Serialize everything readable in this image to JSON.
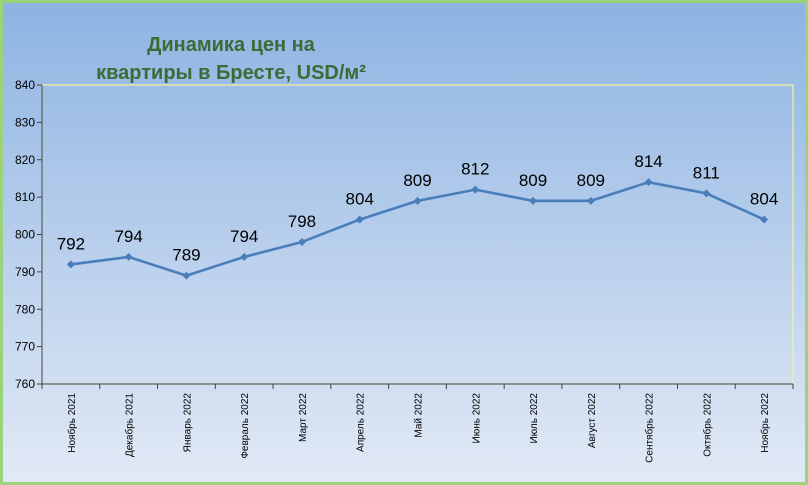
{
  "chart_data": {
    "type": "line",
    "title_lines": [
      "Динамика цен на",
      "квартиры в Бресте, USD/м²"
    ],
    "categories": [
      "Ноябрь 2021",
      "Декабрь 2021",
      "Январь 2022",
      "Февраль 2022",
      "Март 2022",
      "Апрель 2022",
      "Май 2022",
      "Июнь 2022",
      "Июль 2022",
      "Август 2022",
      "Сентябрь 2022",
      "Октябрь 2022",
      "Ноябрь 2022"
    ],
    "values": [
      792,
      794,
      789,
      794,
      798,
      804,
      809,
      812,
      809,
      809,
      814,
      811,
      804
    ],
    "ylim": [
      760,
      840
    ],
    "yticks": [
      760,
      770,
      780,
      790,
      800,
      810,
      820,
      830,
      840
    ],
    "data_labels": true,
    "grid": false,
    "legend": "none"
  },
  "colors": {
    "series_line": "#4a7ebb",
    "title": "#3b6b37",
    "frame_border": "#9bd37a",
    "plot_border": "#f3f39c",
    "axis": "#404040",
    "background_top": "#8db3e2",
    "background_bottom": "#e2eaf6"
  }
}
